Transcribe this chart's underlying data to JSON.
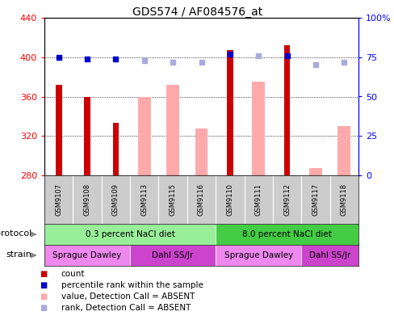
{
  "title": "GDS574 / AF084576_at",
  "samples": [
    "GSM9107",
    "GSM9108",
    "GSM9109",
    "GSM9113",
    "GSM9115",
    "GSM9116",
    "GSM9110",
    "GSM9111",
    "GSM9112",
    "GSM9117",
    "GSM9118"
  ],
  "count_values": [
    372,
    360,
    333,
    null,
    null,
    null,
    407,
    null,
    412,
    null,
    null
  ],
  "absent_values": [
    null,
    null,
    null,
    360,
    372,
    328,
    null,
    375,
    null,
    287,
    330
  ],
  "rank_dark_values": [
    75,
    74,
    74,
    null,
    null,
    null,
    77,
    null,
    76,
    null,
    null
  ],
  "rank_absent_values": [
    null,
    null,
    null,
    73,
    72,
    72,
    null,
    76,
    null,
    70,
    72
  ],
  "ylim": [
    280,
    440
  ],
  "y2lim": [
    0,
    100
  ],
  "yticks": [
    280,
    320,
    360,
    400,
    440
  ],
  "y2ticks": [
    0,
    25,
    50,
    75,
    100
  ],
  "y2labels": [
    "0",
    "25",
    "50",
    "75",
    "100%"
  ],
  "gridlines": [
    320,
    360,
    400
  ],
  "protocol_groups": [
    {
      "label": "0.3 percent NaCl diet",
      "start": 0,
      "end": 5,
      "color": "#99ee99"
    },
    {
      "label": "8.0 percent NaCl diet",
      "start": 6,
      "end": 10,
      "color": "#44cc44"
    }
  ],
  "strain_groups": [
    {
      "label": "Sprague Dawley",
      "start": 0,
      "end": 2,
      "color": "#ee88ee"
    },
    {
      "label": "Dahl SS/Jr",
      "start": 3,
      "end": 5,
      "color": "#cc44cc"
    },
    {
      "label": "Sprague Dawley",
      "start": 6,
      "end": 8,
      "color": "#ee88ee"
    },
    {
      "label": "Dahl SS/Jr",
      "start": 9,
      "end": 10,
      "color": "#cc44cc"
    }
  ],
  "legend_items": [
    {
      "label": "count",
      "color": "#cc0000"
    },
    {
      "label": "percentile rank within the sample",
      "color": "#0000cc"
    },
    {
      "label": "value, Detection Call = ABSENT",
      "color": "#ffaaaa"
    },
    {
      "label": "rank, Detection Call = ABSENT",
      "color": "#aaaadd"
    }
  ],
  "fig_w": 4.89,
  "fig_h": 3.96,
  "dpi": 100
}
